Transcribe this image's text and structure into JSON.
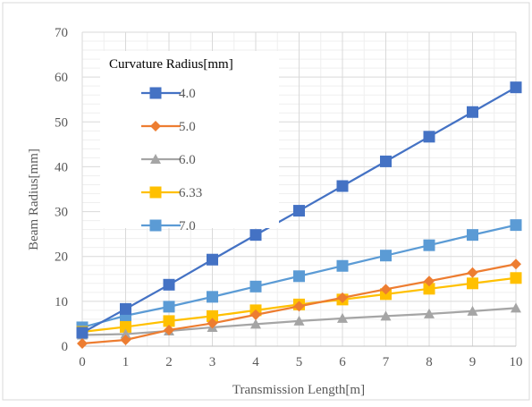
{
  "chart_data": {
    "type": "line",
    "title": "",
    "xlabel": "Transmission Length[m]",
    "ylabel": "Beam Radius[mm]",
    "xlim": [
      0,
      10
    ],
    "ylim": [
      0,
      70
    ],
    "x_ticks": [
      "0",
      "1",
      "2",
      "3",
      "4",
      "5",
      "6",
      "7",
      "8",
      "9",
      "10"
    ],
    "y_ticks": [
      "0",
      "10",
      "20",
      "30",
      "40",
      "50",
      "60",
      "70"
    ],
    "grid": true,
    "legend_title": "Curvature Radius[mm]",
    "legend_position": "top-left",
    "x": [
      0,
      1,
      2,
      3,
      4,
      5,
      6,
      7,
      8,
      9,
      10
    ],
    "series": [
      {
        "name": "4.0",
        "marker": "square",
        "color": "#4472C4",
        "values": [
          3.0,
          8.3,
          13.7,
          19.3,
          24.8,
          30.2,
          35.7,
          41.2,
          46.7,
          52.2,
          57.7
        ]
      },
      {
        "name": "5.0",
        "marker": "diamond",
        "color": "#ED7D31",
        "values": [
          0.6,
          1.4,
          3.6,
          5.1,
          7.0,
          8.9,
          10.8,
          12.7,
          14.5,
          16.4,
          18.3
        ]
      },
      {
        "name": "6.0",
        "marker": "triangle",
        "color": "#A5A5A5",
        "values": [
          2.5,
          2.7,
          3.4,
          4.2,
          4.9,
          5.6,
          6.2,
          6.7,
          7.2,
          7.8,
          8.5
        ]
      },
      {
        "name": "6.33",
        "marker": "square",
        "color": "#FFC000",
        "values": [
          3.2,
          4.3,
          5.6,
          6.7,
          8.0,
          9.3,
          10.4,
          11.6,
          12.8,
          14.0,
          15.2
        ]
      },
      {
        "name": "7.0",
        "marker": "square",
        "color": "#5B9BD5",
        "values": [
          4.2,
          6.8,
          8.8,
          11.0,
          13.3,
          15.6,
          17.9,
          20.2,
          22.5,
          24.8,
          27.0
        ]
      }
    ]
  }
}
